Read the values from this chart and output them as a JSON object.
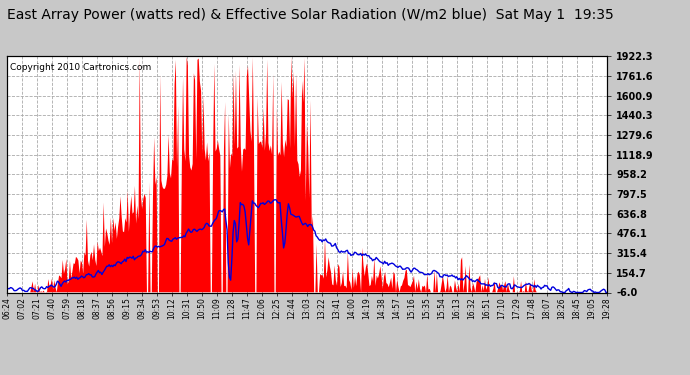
{
  "title": "East Array Power (watts red) & Effective Solar Radiation (W/m2 blue)  Sat May 1  19:35",
  "copyright": "Copyright 2010 Cartronics.com",
  "ylabel_right_ticks": [
    1922.3,
    1761.6,
    1600.9,
    1440.3,
    1279.6,
    1118.9,
    958.2,
    797.5,
    636.8,
    476.1,
    315.4,
    154.7,
    -6.0
  ],
  "ylim": [
    -6.0,
    1922.3
  ],
  "fig_background_color": "#c8c8c8",
  "plot_background": "#ffffff",
  "red_color": "#ff0000",
  "blue_color": "#0000dd",
  "title_fontsize": 10,
  "x_labels": [
    "06:24",
    "07:02",
    "07:21",
    "07:40",
    "07:59",
    "08:18",
    "08:37",
    "08:56",
    "09:15",
    "09:34",
    "09:53",
    "10:12",
    "10:31",
    "10:50",
    "11:09",
    "11:28",
    "11:47",
    "12:06",
    "12:25",
    "12:44",
    "13:03",
    "13:22",
    "13:41",
    "14:00",
    "14:19",
    "14:38",
    "14:57",
    "15:16",
    "15:35",
    "15:54",
    "16:13",
    "16:32",
    "16:51",
    "17:10",
    "17:29",
    "17:48",
    "18:07",
    "18:26",
    "18:45",
    "19:05",
    "19:28"
  ]
}
